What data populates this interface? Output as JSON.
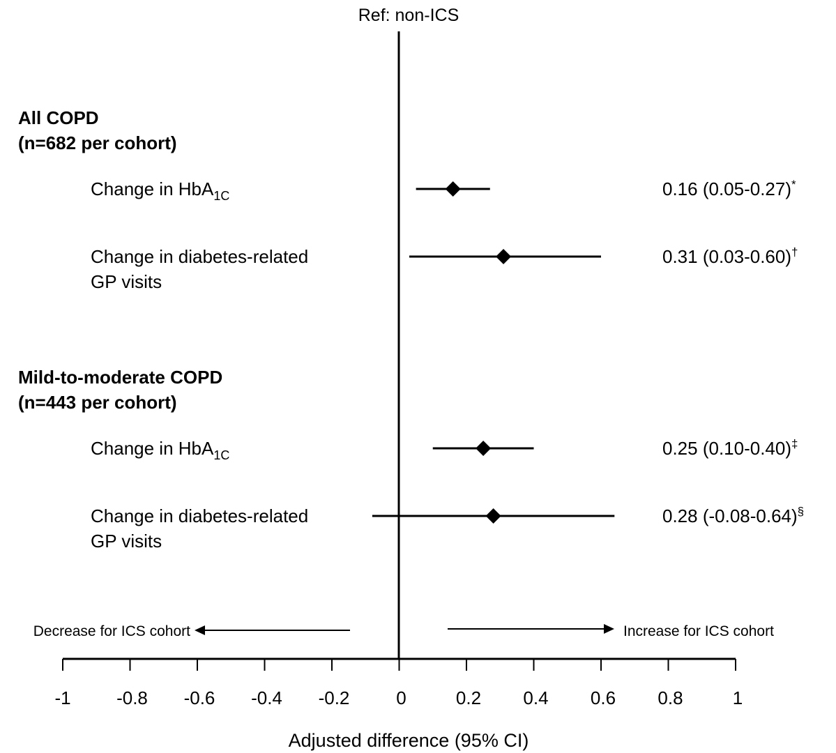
{
  "chart_data": {
    "type": "forest",
    "reference_label": "Ref: non-ICS",
    "xlabel": "Adjusted difference (95% CI)",
    "xlim": [
      -1,
      1
    ],
    "xticks": [
      "-1",
      "-0.8",
      "-0.6",
      "-0.4",
      "-0.2",
      "0",
      "0.2",
      "0.4",
      "0.6",
      "0.8",
      "1"
    ],
    "direction_left": "Decrease for ICS cohort",
    "direction_right": "Increase for ICS cohort",
    "groups": [
      {
        "title_line1": "All COPD",
        "title_line2": "(n=682 per cohort)",
        "rows": [
          {
            "label_line1": "Change in HbA",
            "label_sub": "1C",
            "label_line2": "",
            "estimate": 0.16,
            "ci_low": 0.05,
            "ci_high": 0.27,
            "annotation": "0.16 (0.05-0.27)*"
          },
          {
            "label_line1": "Change in diabetes-related",
            "label_sub": "",
            "label_line2": "GP visits",
            "estimate": 0.31,
            "ci_low": 0.03,
            "ci_high": 0.6,
            "annotation": "0.31 (0.03-0.60)†"
          }
        ]
      },
      {
        "title_line1": "Mild-to-moderate COPD",
        "title_line2": "(n=443 per cohort)",
        "rows": [
          {
            "label_line1": "Change in HbA",
            "label_sub": "1C",
            "label_line2": "",
            "estimate": 0.25,
            "ci_low": 0.1,
            "ci_high": 0.4,
            "annotation": "0.25 (0.10-0.40)‡"
          },
          {
            "label_line1": "Change in diabetes-related",
            "label_sub": "",
            "label_line2": "GP visits",
            "estimate": 0.28,
            "ci_low": -0.08,
            "ci_high": 0.64,
            "annotation": "0.28 (-0.08-0.64)§"
          }
        ]
      }
    ]
  }
}
